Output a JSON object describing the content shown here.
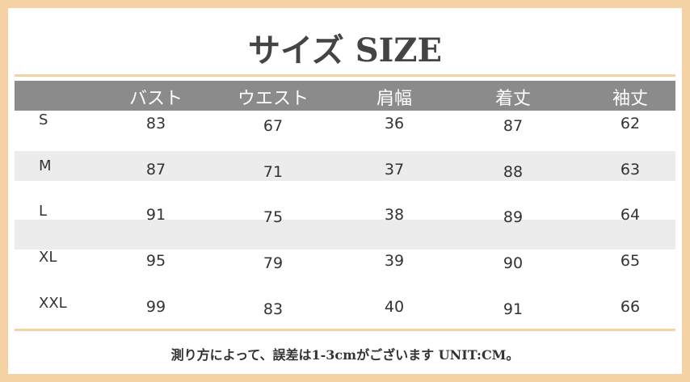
{
  "title": "サイズ SIZE",
  "table": {
    "header": [
      "バスト",
      "ウエスト",
      "肩幅",
      "着丈",
      "袖丈"
    ],
    "rows": [
      [
        "S",
        83,
        67,
        36,
        87,
        62
      ],
      [
        "M",
        87,
        71,
        37,
        88,
        63
      ],
      [
        "L",
        91,
        75,
        38,
        89,
        64
      ],
      [
        "XL",
        95,
        79,
        39,
        90,
        65
      ],
      [
        "XXL",
        99,
        83,
        40,
        91,
        66
      ]
    ]
  },
  "footer": "測り方によって、誤差は1-3cmがございます UNIT:CM。"
}
